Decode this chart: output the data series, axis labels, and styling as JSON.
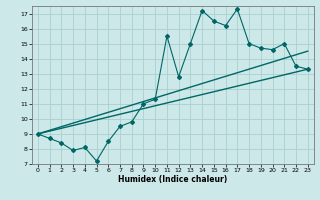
{
  "title": "",
  "xlabel": "Humidex (Indice chaleur)",
  "ylabel": "",
  "background_color": "#cce8e8",
  "grid_color": "#aacfcf",
  "line_color": "#006666",
  "xlim": [
    -0.5,
    23.5
  ],
  "ylim": [
    7,
    17.5
  ],
  "xticks": [
    0,
    1,
    2,
    3,
    4,
    5,
    6,
    7,
    8,
    9,
    10,
    11,
    12,
    13,
    14,
    15,
    16,
    17,
    18,
    19,
    20,
    21,
    22,
    23
  ],
  "yticks": [
    7,
    8,
    9,
    10,
    11,
    12,
    13,
    14,
    15,
    16,
    17
  ],
  "line1_x": [
    0,
    1,
    2,
    3,
    4,
    5,
    6,
    7,
    8,
    9,
    10,
    11,
    12,
    13,
    14,
    15,
    16,
    17,
    18,
    19,
    20,
    21,
    22,
    23
  ],
  "line1_y": [
    9.0,
    8.7,
    8.4,
    7.9,
    8.1,
    7.2,
    8.5,
    9.5,
    9.8,
    11.0,
    11.3,
    15.5,
    12.8,
    15.0,
    17.2,
    16.5,
    16.2,
    17.3,
    15.0,
    14.7,
    14.6,
    15.0,
    13.5,
    13.3
  ],
  "line2_x": [
    0,
    23
  ],
  "line2_y": [
    9.0,
    14.5
  ],
  "line3_x": [
    0,
    23
  ],
  "line3_y": [
    9.0,
    13.3
  ]
}
